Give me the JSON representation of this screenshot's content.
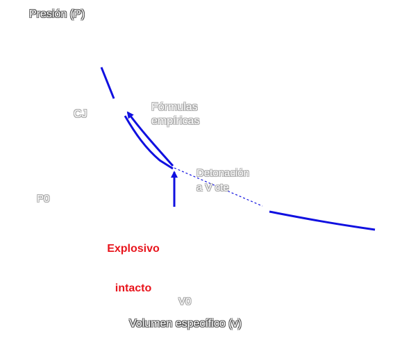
{
  "labels": {
    "y_axis": "Presión (P)",
    "x_axis": "Volumen específico (v)",
    "cj_point": "CJ",
    "empirical_formulas_line1": "Fórmulas",
    "empirical_formulas_line2": "empíricas",
    "detonation_line1": "Detonación",
    "detonation_line2": "a V cte",
    "p0": "P0",
    "v0": "V0",
    "intact_line1": "Explosivo",
    "intact_line2": "intacto"
  },
  "colors": {
    "curve": "#1010e0",
    "intact_label": "#e8141c",
    "label_outline": "#555555",
    "label_outline_light": "#a8a8a8"
  }
}
